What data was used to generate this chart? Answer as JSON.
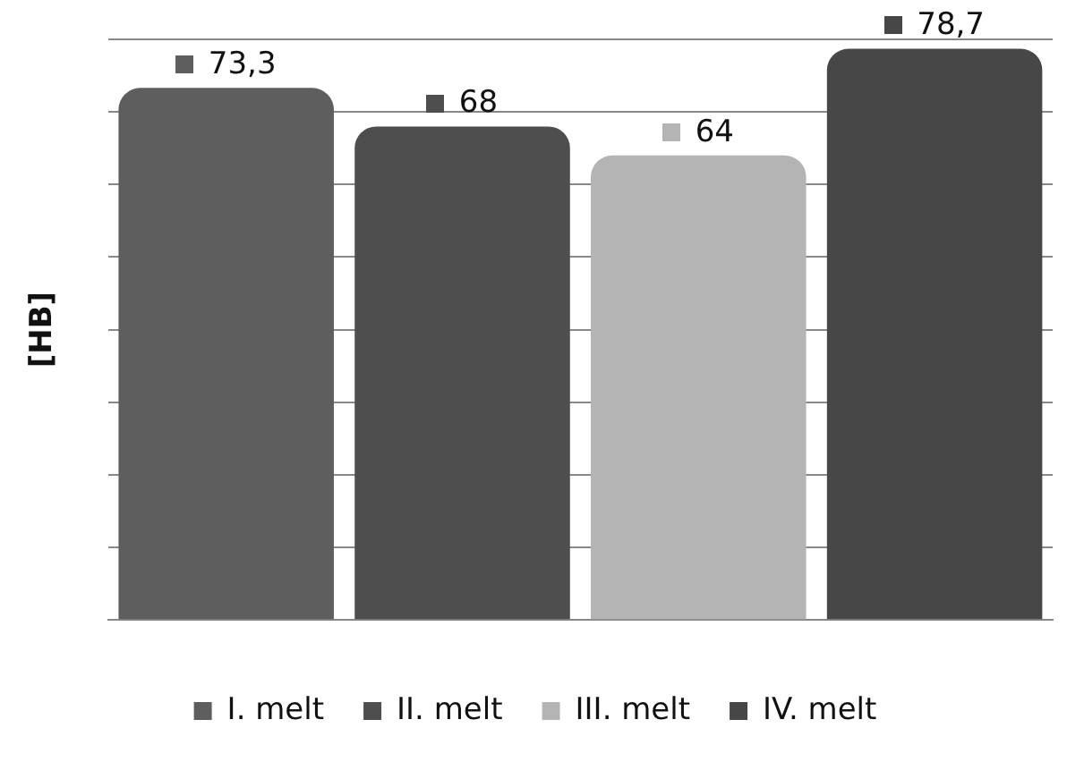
{
  "chart_data": {
    "type": "bar",
    "ylabel": "[HB]",
    "categories": [
      null,
      null,
      null,
      null
    ],
    "stacked": true,
    "series": [
      {
        "name": "I. melt",
        "color": "#5e5e5e",
        "values": [
          73.3,
          null,
          null,
          null
        ],
        "value_labels": [
          "73,3",
          null,
          null,
          null
        ]
      },
      {
        "name": "II. melt",
        "color": "#4e4e4e",
        "values": [
          null,
          68,
          null,
          null
        ],
        "value_labels": [
          null,
          "68",
          null,
          null
        ]
      },
      {
        "name": "III. melt",
        "color": "#b4b4b4",
        "values": [
          null,
          null,
          64,
          null
        ],
        "value_labels": [
          null,
          null,
          "64",
          null
        ]
      },
      {
        "name": "IV. melt",
        "color": "#474747",
        "values": [
          null,
          null,
          null,
          78.7
        ],
        "value_labels": [
          null,
          null,
          null,
          "78,7"
        ]
      }
    ],
    "ylim": [
      0,
      80
    ],
    "yticks": [
      {
        "value": 0,
        "label": null
      },
      {
        "value": 10,
        "label": null
      },
      {
        "value": 20,
        "label": null
      },
      {
        "value": 30,
        "label": null
      },
      {
        "value": 40,
        "label": null
      },
      {
        "value": 50,
        "label": null
      },
      {
        "value": 60,
        "label": null
      },
      {
        "value": 70,
        "label": null
      },
      {
        "value": 80,
        "label": null
      }
    ],
    "grid": "y",
    "legend": "bottom"
  }
}
